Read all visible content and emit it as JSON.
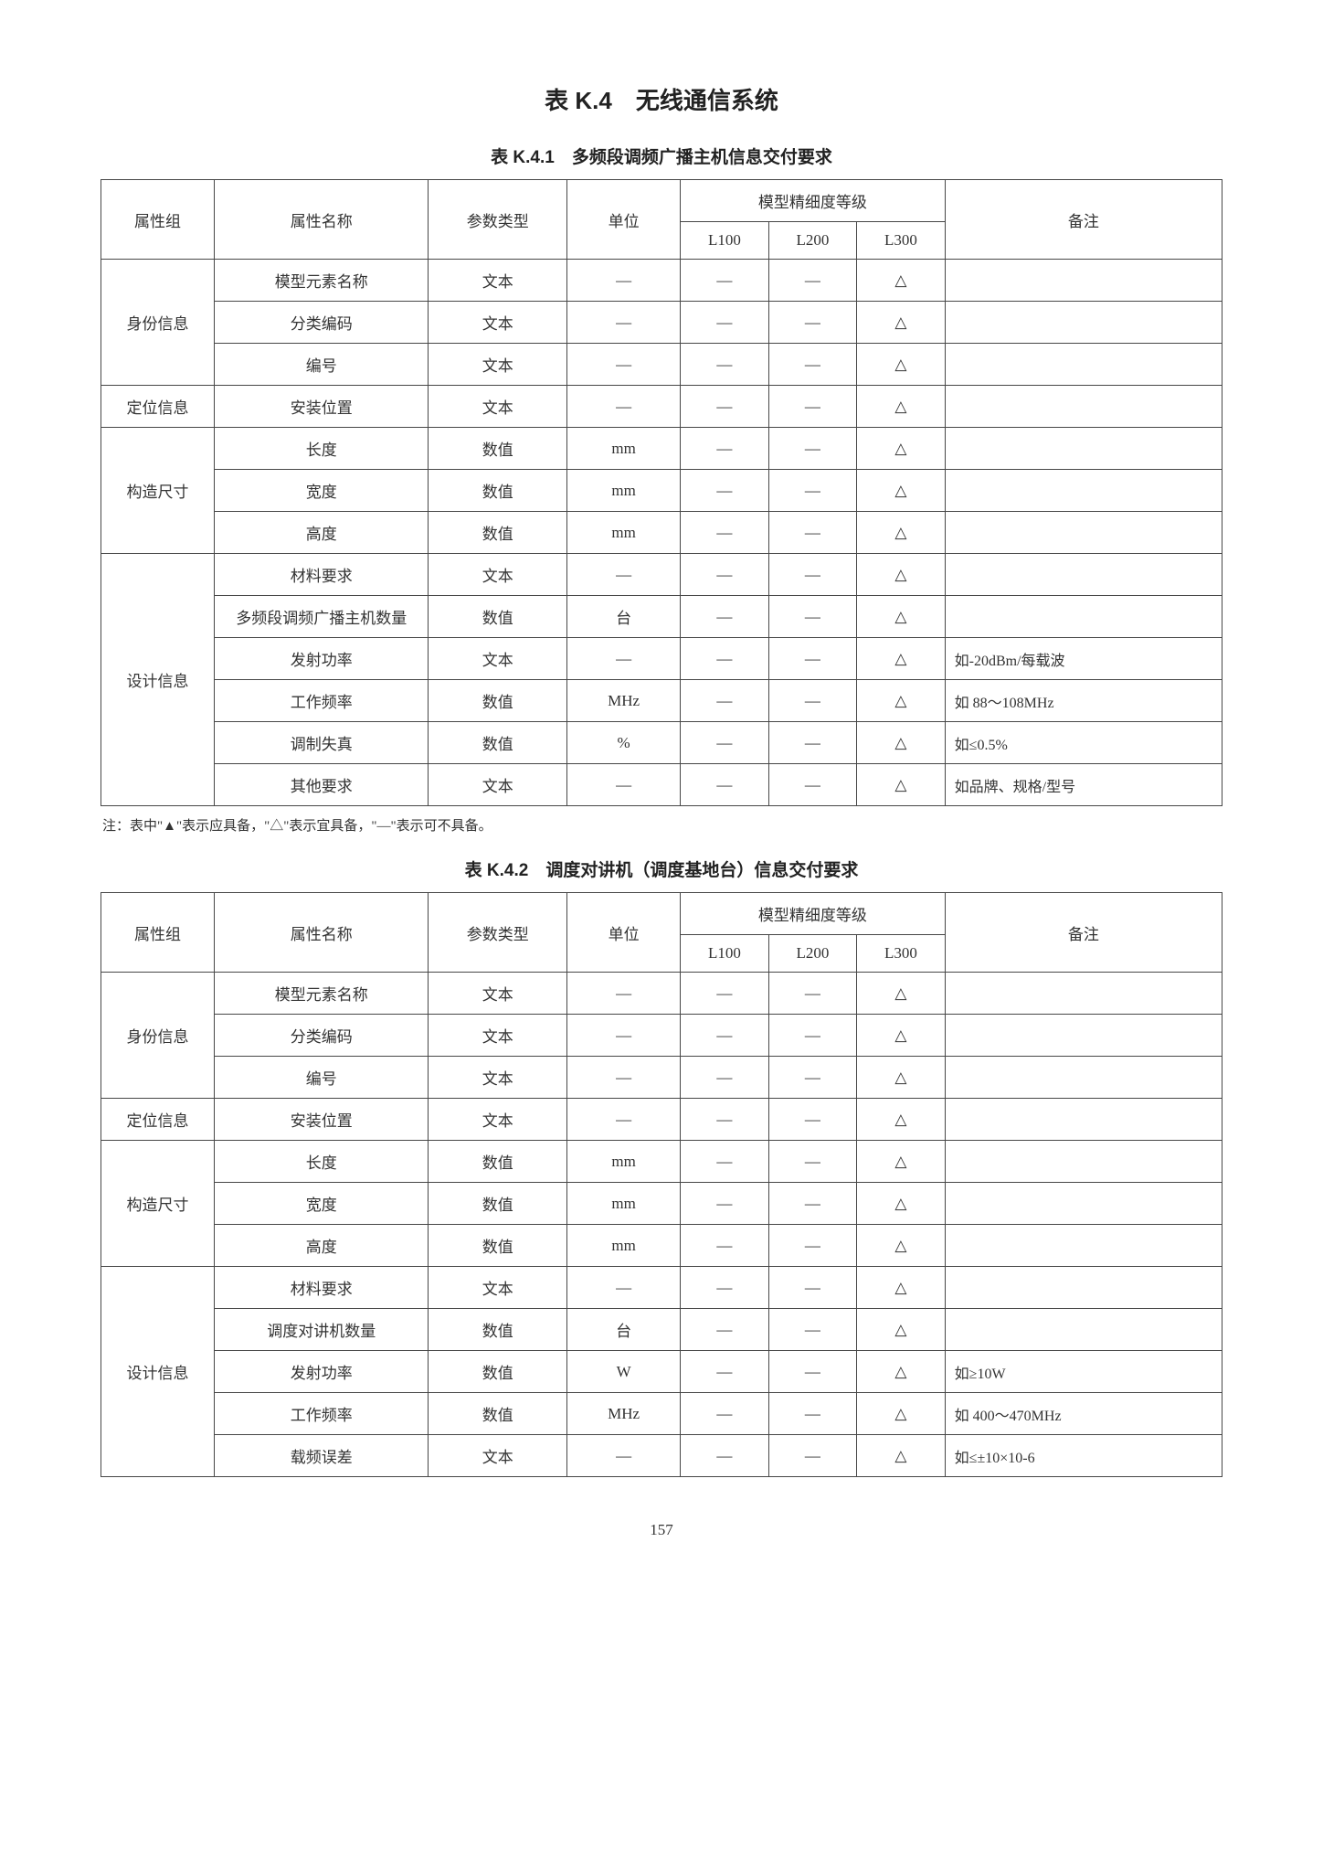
{
  "page": {
    "title": "表 K.4　无线通信系统",
    "pageNumber": "157"
  },
  "note": "注：表中\"▲\"表示应具备，\"△\"表示宜具备，\"—\"表示可不具备。",
  "columns": {
    "group": "属性组",
    "name": "属性名称",
    "ptype": "参数类型",
    "unit": "单位",
    "precisionHeader": "模型精细度等级",
    "l100": "L100",
    "l200": "L200",
    "l300": "L300",
    "remark": "备注"
  },
  "tables": [
    {
      "title": "表 K.4.1　多频段调频广播主机信息交付要求",
      "groups": [
        {
          "label": "身份信息",
          "rows": [
            {
              "name": "模型元素名称",
              "ptype": "文本",
              "unit": "—",
              "l100": "—",
              "l200": "—",
              "l300": "△",
              "remark": ""
            },
            {
              "name": "分类编码",
              "ptype": "文本",
              "unit": "—",
              "l100": "—",
              "l200": "—",
              "l300": "△",
              "remark": ""
            },
            {
              "name": "编号",
              "ptype": "文本",
              "unit": "—",
              "l100": "—",
              "l200": "—",
              "l300": "△",
              "remark": ""
            }
          ]
        },
        {
          "label": "定位信息",
          "rows": [
            {
              "name": "安装位置",
              "ptype": "文本",
              "unit": "—",
              "l100": "—",
              "l200": "—",
              "l300": "△",
              "remark": ""
            }
          ]
        },
        {
          "label": "构造尺寸",
          "rows": [
            {
              "name": "长度",
              "ptype": "数值",
              "unit": "mm",
              "l100": "—",
              "l200": "—",
              "l300": "△",
              "remark": ""
            },
            {
              "name": "宽度",
              "ptype": "数值",
              "unit": "mm",
              "l100": "—",
              "l200": "—",
              "l300": "△",
              "remark": ""
            },
            {
              "name": "高度",
              "ptype": "数值",
              "unit": "mm",
              "l100": "—",
              "l200": "—",
              "l300": "△",
              "remark": ""
            }
          ]
        },
        {
          "label": "设计信息",
          "rows": [
            {
              "name": "材料要求",
              "ptype": "文本",
              "unit": "—",
              "l100": "—",
              "l200": "—",
              "l300": "△",
              "remark": ""
            },
            {
              "name": "多频段调频广播主机数量",
              "ptype": "数值",
              "unit": "台",
              "l100": "—",
              "l200": "—",
              "l300": "△",
              "remark": ""
            },
            {
              "name": "发射功率",
              "ptype": "文本",
              "unit": "—",
              "l100": "—",
              "l200": "—",
              "l300": "△",
              "remark": "如-20dBm/每载波"
            },
            {
              "name": "工作频率",
              "ptype": "数值",
              "unit": "MHz",
              "l100": "—",
              "l200": "—",
              "l300": "△",
              "remark": "如 88～108MHz"
            },
            {
              "name": "调制失真",
              "ptype": "数值",
              "unit": "%",
              "l100": "—",
              "l200": "—",
              "l300": "△",
              "remark": "如≤0.5%"
            },
            {
              "name": "其他要求",
              "ptype": "文本",
              "unit": "—",
              "l100": "—",
              "l200": "—",
              "l300": "△",
              "remark": "如品牌、规格/型号"
            }
          ]
        }
      ]
    },
    {
      "title": "表 K.4.2　调度对讲机（调度基地台）信息交付要求",
      "groups": [
        {
          "label": "身份信息",
          "rows": [
            {
              "name": "模型元素名称",
              "ptype": "文本",
              "unit": "—",
              "l100": "—",
              "l200": "—",
              "l300": "△",
              "remark": ""
            },
            {
              "name": "分类编码",
              "ptype": "文本",
              "unit": "—",
              "l100": "—",
              "l200": "—",
              "l300": "△",
              "remark": ""
            },
            {
              "name": "编号",
              "ptype": "文本",
              "unit": "—",
              "l100": "—",
              "l200": "—",
              "l300": "△",
              "remark": ""
            }
          ]
        },
        {
          "label": "定位信息",
          "rows": [
            {
              "name": "安装位置",
              "ptype": "文本",
              "unit": "—",
              "l100": "—",
              "l200": "—",
              "l300": "△",
              "remark": ""
            }
          ]
        },
        {
          "label": "构造尺寸",
          "rows": [
            {
              "name": "长度",
              "ptype": "数值",
              "unit": "mm",
              "l100": "—",
              "l200": "—",
              "l300": "△",
              "remark": ""
            },
            {
              "name": "宽度",
              "ptype": "数值",
              "unit": "mm",
              "l100": "—",
              "l200": "—",
              "l300": "△",
              "remark": ""
            },
            {
              "name": "高度",
              "ptype": "数值",
              "unit": "mm",
              "l100": "—",
              "l200": "—",
              "l300": "△",
              "remark": ""
            }
          ]
        },
        {
          "label": "设计信息",
          "rows": [
            {
              "name": "材料要求",
              "ptype": "文本",
              "unit": "—",
              "l100": "—",
              "l200": "—",
              "l300": "△",
              "remark": ""
            },
            {
              "name": "调度对讲机数量",
              "ptype": "数值",
              "unit": "台",
              "l100": "—",
              "l200": "—",
              "l300": "△",
              "remark": ""
            },
            {
              "name": "发射功率",
              "ptype": "数值",
              "unit": "W",
              "l100": "—",
              "l200": "—",
              "l300": "△",
              "remark": "如≥10W"
            },
            {
              "name": "工作频率",
              "ptype": "数值",
              "unit": "MHz",
              "l100": "—",
              "l200": "—",
              "l300": "△",
              "remark": "如 400～470MHz"
            },
            {
              "name": "载频误差",
              "ptype": "文本",
              "unit": "—",
              "l100": "—",
              "l200": "—",
              "l300": "△",
              "remark": "如≤±10×10-6"
            }
          ]
        }
      ]
    }
  ]
}
